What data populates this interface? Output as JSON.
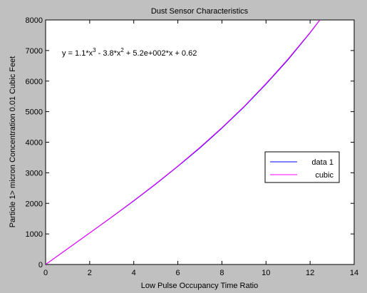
{
  "chart_data": {
    "type": "line",
    "title": "Dust Sensor Characteristics",
    "xlabel": "Low Pulse Occupancy Time Ratio",
    "ylabel": "Particle 1> micron Concentration 0.01 Cubic Feet",
    "annotation": [
      {
        "text": "y = 1.1*x"
      },
      {
        "text": "3",
        "superscript": true
      },
      {
        "text": " - 3.8*x"
      },
      {
        "text": "2",
        "superscript": true
      },
      {
        "text": " + 5.2e+002*x + 0.62"
      }
    ],
    "x": [
      0,
      1,
      2,
      3,
      4,
      5,
      6,
      7,
      8,
      9,
      10,
      11,
      12,
      12.5
    ],
    "series": [
      {
        "name": "data 1",
        "color": "#0000ff",
        "values": [
          0,
          515,
          1030,
          1550,
          2080,
          2630,
          3210,
          3810,
          4460,
          5150,
          5900,
          6700,
          7580,
          8050
        ]
      },
      {
        "name": "cubic",
        "color": "#ff00ff",
        "values": [
          0.62,
          518,
          1034,
          1556,
          2090,
          2643,
          3222,
          3831,
          4478,
          5168,
          5921,
          6723,
          7594,
          8055
        ]
      }
    ],
    "xlim": [
      0,
      14
    ],
    "ylim": [
      0,
      8000
    ],
    "xticks": [
      0,
      2,
      4,
      6,
      8,
      10,
      12,
      14
    ],
    "yticks": [
      0,
      1000,
      2000,
      3000,
      4000,
      5000,
      6000,
      7000,
      8000
    ],
    "legend": "right"
  }
}
